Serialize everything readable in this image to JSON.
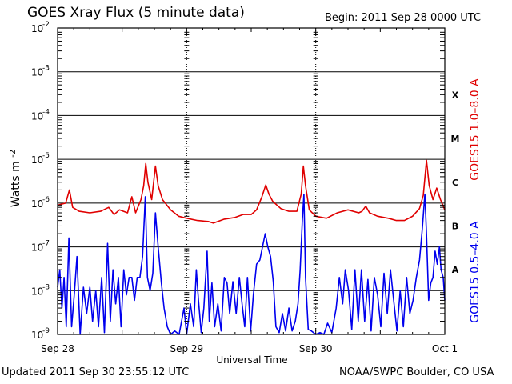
{
  "chart_data": {
    "type": "line",
    "title": "GOES Xray Flux (5 minute data)",
    "begin_label": "Begin:  2011 Sep 28 0000 UTC",
    "updated_label": "Updated 2011 Sep 30 23:55:12 UTC",
    "credit_label": "NOAA/SWPC Boulder, CO USA",
    "xlabel": "Universal Time",
    "ylabel_main": "Watts m",
    "ylabel_exp": "-2",
    "x_unit": "hours since 2011 Sep 28 0000 UTC",
    "xlim": [
      0,
      72
    ],
    "x_ticks": [
      {
        "label": "Sep 28",
        "x": 0
      },
      {
        "label": "Sep 29",
        "x": 24
      },
      {
        "label": "Sep 30",
        "x": 48
      },
      {
        "label": "Oct 1",
        "x": 72
      }
    ],
    "y_scale": "log",
    "ylim": [
      1e-09,
      0.01
    ],
    "y_ticks": [
      {
        "base": "10",
        "exp": "-2",
        "value": 0.01
      },
      {
        "base": "10",
        "exp": "-3",
        "value": 0.001
      },
      {
        "base": "10",
        "exp": "-4",
        "value": 0.0001
      },
      {
        "base": "10",
        "exp": "-5",
        "value": 1e-05
      },
      {
        "base": "10",
        "exp": "-6",
        "value": 1e-06
      },
      {
        "base": "10",
        "exp": "-7",
        "value": 1e-07
      },
      {
        "base": "10",
        "exp": "-8",
        "value": 1e-08
      },
      {
        "base": "10",
        "exp": "-9",
        "value": 1e-09
      }
    ],
    "flare_classes": [
      {
        "label": "X",
        "value": 0.0003
      },
      {
        "label": "M",
        "value": 3e-05
      },
      {
        "label": "C",
        "value": 3e-06
      },
      {
        "label": "B",
        "value": 3e-07
      },
      {
        "label": "A",
        "value": 3e-08
      }
    ],
    "grid": true,
    "series": [
      {
        "name": "GOES15 1.0–8.0 A",
        "color": "#e00000",
        "points": [
          [
            0,
            9e-07
          ],
          [
            1.5,
            1e-06
          ],
          [
            2.2,
            2e-06
          ],
          [
            2.8,
            8e-07
          ],
          [
            4,
            6.5e-07
          ],
          [
            6,
            6e-07
          ],
          [
            8,
            6.5e-07
          ],
          [
            9.5,
            8e-07
          ],
          [
            10.5,
            5.5e-07
          ],
          [
            11.5,
            7e-07
          ],
          [
            13,
            6e-07
          ],
          [
            13.8,
            1.4e-06
          ],
          [
            14.5,
            6e-07
          ],
          [
            15.5,
            1.2e-06
          ],
          [
            16,
            2.5e-06
          ],
          [
            16.4,
            8e-06
          ],
          [
            16.8,
            3e-06
          ],
          [
            17.5,
            1.2e-06
          ],
          [
            18.2,
            7e-06
          ],
          [
            18.7,
            2.5e-06
          ],
          [
            19.5,
            1.2e-06
          ],
          [
            21,
            7e-07
          ],
          [
            22.5,
            5e-07
          ],
          [
            24,
            4.5e-07
          ],
          [
            26,
            4e-07
          ],
          [
            28,
            3.8e-07
          ],
          [
            29,
            3.5e-07
          ],
          [
            31,
            4.3e-07
          ],
          [
            33,
            4.7e-07
          ],
          [
            34.5,
            5.5e-07
          ],
          [
            36,
            5.5e-07
          ],
          [
            37,
            7e-07
          ],
          [
            38,
            1.4e-06
          ],
          [
            38.7,
            2.6e-06
          ],
          [
            39.3,
            1.6e-06
          ],
          [
            40,
            1.1e-06
          ],
          [
            41.5,
            7.5e-07
          ],
          [
            43,
            6.5e-07
          ],
          [
            44.5,
            6.5e-07
          ],
          [
            45.3,
            1.6e-06
          ],
          [
            45.7,
            7e-06
          ],
          [
            46.1,
            2.5e-06
          ],
          [
            46.8,
            7e-07
          ],
          [
            48,
            5e-07
          ],
          [
            50,
            4.5e-07
          ],
          [
            52,
            6e-07
          ],
          [
            54,
            7e-07
          ],
          [
            56,
            6e-07
          ],
          [
            56.6,
            6.5e-07
          ],
          [
            57.3,
            8.5e-07
          ],
          [
            58,
            6e-07
          ],
          [
            59.5,
            5e-07
          ],
          [
            61.5,
            4.5e-07
          ],
          [
            63,
            4e-07
          ],
          [
            64.5,
            4e-07
          ],
          [
            66,
            5e-07
          ],
          [
            67.3,
            7.5e-07
          ],
          [
            68,
            1.5e-06
          ],
          [
            68.6,
            9.5e-06
          ],
          [
            69.1,
            2.5e-06
          ],
          [
            69.8,
            1.2e-06
          ],
          [
            70.5,
            2.2e-06
          ],
          [
            71.2,
            1.2e-06
          ],
          [
            72,
            7e-07
          ]
        ]
      },
      {
        "name": "GOES15 0.5–4.0 A",
        "color": "#0000ee",
        "points": [
          [
            0,
            1.2e-08
          ],
          [
            0.4,
            3e-08
          ],
          [
            0.8,
            4e-09
          ],
          [
            1.2,
            2e-08
          ],
          [
            1.6,
            1.5e-09
          ],
          [
            2.1,
            1.6e-07
          ],
          [
            2.6,
            1.5e-09
          ],
          [
            3.1,
            8e-09
          ],
          [
            3.6,
            6e-08
          ],
          [
            4.2,
            1e-09
          ],
          [
            4.8,
            1.2e-08
          ],
          [
            5.4,
            3e-09
          ],
          [
            6,
            1.2e-08
          ],
          [
            6.5,
            2e-09
          ],
          [
            7.1,
            1e-08
          ],
          [
            7.6,
            1.5e-09
          ],
          [
            8.2,
            2e-08
          ],
          [
            8.7,
            1.1e-09
          ],
          [
            9.3,
            1.2e-07
          ],
          [
            9.8,
            2e-09
          ],
          [
            10.3,
            3e-08
          ],
          [
            10.8,
            5e-09
          ],
          [
            11.3,
            2e-08
          ],
          [
            11.8,
            1.5e-09
          ],
          [
            12.3,
            3e-08
          ],
          [
            12.8,
            8e-09
          ],
          [
            13.3,
            2e-08
          ],
          [
            13.8,
            2e-08
          ],
          [
            14.3,
            6e-09
          ],
          [
            14.8,
            2e-08
          ],
          [
            15.3,
            2e-08
          ],
          [
            15.8,
            6e-08
          ],
          [
            16.3,
            1.4e-06
          ],
          [
            16.7,
            2e-08
          ],
          [
            17.2,
            1e-08
          ],
          [
            17.7,
            2.5e-08
          ],
          [
            18.2,
            6e-07
          ],
          [
            18.7,
            1e-07
          ],
          [
            19.3,
            1.5e-08
          ],
          [
            19.8,
            4e-09
          ],
          [
            20.4,
            1.5e-09
          ],
          [
            21,
            1e-09
          ],
          [
            21.8,
            1.2e-09
          ],
          [
            22.6,
            1e-09
          ],
          [
            23.5,
            4e-09
          ],
          [
            24,
            1e-09
          ],
          [
            24.7,
            5e-09
          ],
          [
            25.3,
            1.5e-09
          ],
          [
            25.8,
            3e-08
          ],
          [
            26.2,
            6e-09
          ],
          [
            26.7,
            1.1e-09
          ],
          [
            27.2,
            4e-09
          ],
          [
            27.8,
            8e-08
          ],
          [
            28.2,
            2e-09
          ],
          [
            28.7,
            1.5e-08
          ],
          [
            29.2,
            1.5e-09
          ],
          [
            29.8,
            5e-09
          ],
          [
            30.4,
            1.2e-09
          ],
          [
            31,
            2e-08
          ],
          [
            31.5,
            1.5e-08
          ],
          [
            32,
            3e-09
          ],
          [
            32.6,
            1.6e-08
          ],
          [
            33.2,
            3e-09
          ],
          [
            33.8,
            2e-08
          ],
          [
            34.3,
            5e-09
          ],
          [
            34.8,
            1.5e-09
          ],
          [
            35.3,
            2e-08
          ],
          [
            35.9,
            1.2e-09
          ],
          [
            36.4,
            8e-09
          ],
          [
            37,
            4e-08
          ],
          [
            37.6,
            5e-08
          ],
          [
            38.1,
            1e-07
          ],
          [
            38.6,
            2e-07
          ],
          [
            39.1,
            1e-07
          ],
          [
            39.6,
            6e-08
          ],
          [
            40.1,
            1.6e-08
          ],
          [
            40.6,
            1.5e-09
          ],
          [
            41.2,
            1.1e-09
          ],
          [
            41.8,
            3e-09
          ],
          [
            42.4,
            1.2e-09
          ],
          [
            43,
            4e-09
          ],
          [
            43.6,
            1.2e-09
          ],
          [
            44.2,
            2e-09
          ],
          [
            44.7,
            5e-09
          ],
          [
            45.1,
            3e-08
          ],
          [
            45.5,
            4e-07
          ],
          [
            45.8,
            1.6e-06
          ],
          [
            46.1,
            2e-08
          ],
          [
            46.6,
            1.3e-09
          ],
          [
            47.2,
            1.2e-09
          ],
          [
            48,
            1e-09
          ],
          [
            48.8,
            1.1e-09
          ],
          [
            49.5,
            1e-09
          ],
          [
            50.2,
            1.8e-09
          ],
          [
            51,
            1.1e-09
          ],
          [
            51.8,
            4e-09
          ],
          [
            52.4,
            2e-08
          ],
          [
            53,
            5e-09
          ],
          [
            53.5,
            3e-08
          ],
          [
            54.1,
            1e-08
          ],
          [
            54.7,
            1.3e-09
          ],
          [
            55.3,
            3e-08
          ],
          [
            55.9,
            2e-09
          ],
          [
            56.5,
            3e-08
          ],
          [
            57.1,
            2e-09
          ],
          [
            57.7,
            1.8e-08
          ],
          [
            58.3,
            1.2e-09
          ],
          [
            58.9,
            2e-08
          ],
          [
            59.5,
            8e-09
          ],
          [
            60.1,
            1.5e-09
          ],
          [
            60.7,
            2.5e-08
          ],
          [
            61.3,
            3e-09
          ],
          [
            61.9,
            3e-08
          ],
          [
            62.5,
            6e-09
          ],
          [
            63.1,
            1.2e-09
          ],
          [
            63.7,
            1e-08
          ],
          [
            64.3,
            1.5e-09
          ],
          [
            64.9,
            2e-08
          ],
          [
            65.5,
            3e-09
          ],
          [
            66.1,
            6e-09
          ],
          [
            66.7,
            2e-08
          ],
          [
            67.3,
            5e-08
          ],
          [
            67.8,
            2.5e-07
          ],
          [
            68.3,
            1.6e-06
          ],
          [
            68.6,
            2e-07
          ],
          [
            69,
            6e-09
          ],
          [
            69.4,
            1.5e-08
          ],
          [
            69.8,
            2e-08
          ],
          [
            70.2,
            8e-08
          ],
          [
            70.6,
            4e-08
          ],
          [
            71,
            1e-07
          ],
          [
            71.3,
            3e-08
          ],
          [
            71.7,
            2e-08
          ],
          [
            72,
            6e-09
          ]
        ]
      }
    ]
  }
}
